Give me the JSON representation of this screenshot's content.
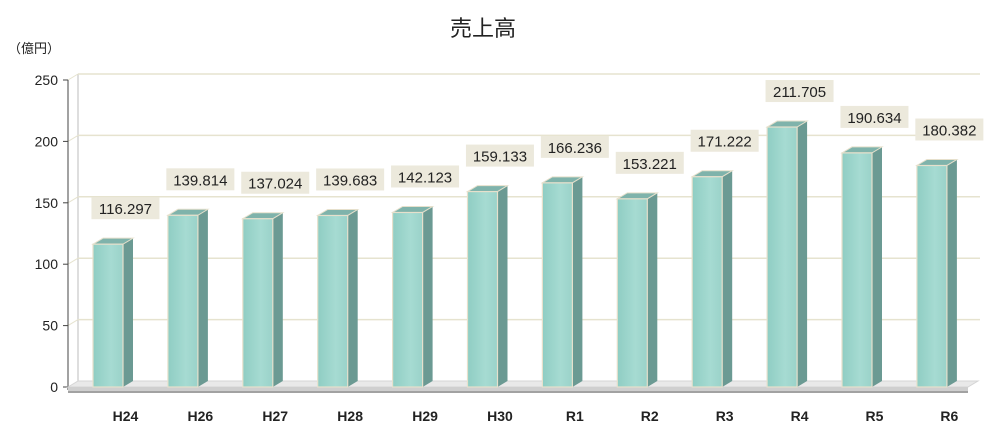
{
  "chart_data": {
    "type": "bar",
    "title": "売上高",
    "ylabel": "（億円）",
    "categories": [
      "H24",
      "H26",
      "H27",
      "H28",
      "H29",
      "H30",
      "R1",
      "R2",
      "R3",
      "R4",
      "R5",
      "R6"
    ],
    "values": [
      116.297,
      139.814,
      137.024,
      139.683,
      142.123,
      159.133,
      166.236,
      153.221,
      171.222,
      211.705,
      190.634,
      180.382
    ],
    "value_labels": [
      "116.297",
      "139.814",
      "137.024",
      "139.683",
      "142.123",
      "159.133",
      "166.236",
      "153.221",
      "171.222",
      "211.705",
      "190.634",
      "180.382"
    ],
    "ylim": [
      0,
      250
    ],
    "yticks": [
      0,
      50,
      100,
      150,
      200,
      250
    ],
    "grid": true,
    "legend": "none",
    "colors": {
      "bar_front": "#9fd6cd",
      "bar_side": "#6b9a93",
      "bar_top": "#7fb3ab",
      "bar_edge": "#e6e0cc",
      "label_bg": "#ece9dc",
      "grid": "#e6e3cf",
      "floor": "#e9e9e9"
    }
  }
}
